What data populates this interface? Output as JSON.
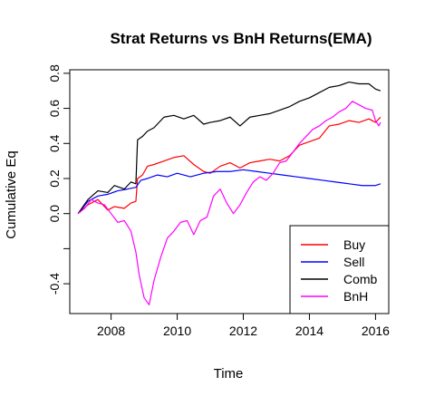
{
  "chart_data": {
    "type": "line",
    "title": "Strat Returns vs BnH Returns(EMA)",
    "xlabel": "Time",
    "ylabel": "Cumulative Eq",
    "xlim": [
      2006.75,
      2016.4
    ],
    "ylim": [
      -0.57,
      0.82
    ],
    "x_ticks": [
      2008,
      2010,
      2012,
      2014,
      2016
    ],
    "x_tick_labels": [
      "2008",
      "2010",
      "2012",
      "2014",
      "2016"
    ],
    "y_ticks": [
      -0.4,
      -0.2,
      0.0,
      0.2,
      0.4,
      0.6,
      0.8
    ],
    "y_tick_labels": [
      "-0.4",
      "",
      "0.0",
      "0.2",
      "0.4",
      "0.6",
      "0.8"
    ],
    "grid": false,
    "legend_position": "bottom-right",
    "series": [
      {
        "name": "Buy",
        "color": "#ff0000",
        "x": [
          2007.0,
          2007.3,
          2007.6,
          2007.9,
          2008.1,
          2008.4,
          2008.6,
          2008.75,
          2008.8,
          2008.95,
          2009.1,
          2009.3,
          2009.6,
          2009.9,
          2010.2,
          2010.5,
          2010.8,
          2011.0,
          2011.3,
          2011.6,
          2011.9,
          2012.2,
          2012.5,
          2012.8,
          2013.1,
          2013.4,
          2013.7,
          2014.0,
          2014.3,
          2014.6,
          2014.9,
          2015.2,
          2015.5,
          2015.8,
          2016.0,
          2016.15
        ],
        "y": [
          0.0,
          0.05,
          0.08,
          0.02,
          0.04,
          0.03,
          0.06,
          0.07,
          0.2,
          0.22,
          0.27,
          0.28,
          0.3,
          0.32,
          0.33,
          0.28,
          0.24,
          0.23,
          0.27,
          0.29,
          0.26,
          0.29,
          0.3,
          0.31,
          0.3,
          0.33,
          0.39,
          0.41,
          0.43,
          0.5,
          0.51,
          0.53,
          0.52,
          0.54,
          0.52,
          0.55
        ]
      },
      {
        "name": "Sell",
        "color": "#0000ff",
        "x": [
          2007.0,
          2007.3,
          2007.6,
          2007.9,
          2008.2,
          2008.5,
          2008.75,
          2008.9,
          2009.1,
          2009.4,
          2009.7,
          2010.0,
          2010.4,
          2010.8,
          2011.2,
          2011.6,
          2012.0,
          2012.4,
          2012.8,
          2013.2,
          2013.6,
          2014.0,
          2014.4,
          2014.8,
          2015.2,
          2015.6,
          2016.0,
          2016.15
        ],
        "y": [
          0.0,
          0.07,
          0.1,
          0.11,
          0.13,
          0.14,
          0.15,
          0.19,
          0.2,
          0.22,
          0.21,
          0.23,
          0.21,
          0.23,
          0.24,
          0.24,
          0.25,
          0.24,
          0.23,
          0.22,
          0.21,
          0.2,
          0.19,
          0.18,
          0.17,
          0.16,
          0.16,
          0.17
        ]
      },
      {
        "name": "Comb",
        "color": "#000000",
        "x": [
          2007.0,
          2007.3,
          2007.6,
          2007.9,
          2008.1,
          2008.4,
          2008.6,
          2008.75,
          2008.8,
          2008.95,
          2009.1,
          2009.3,
          2009.6,
          2009.9,
          2010.2,
          2010.5,
          2010.8,
          2011.0,
          2011.3,
          2011.6,
          2011.9,
          2012.2,
          2012.5,
          2012.8,
          2013.1,
          2013.4,
          2013.7,
          2014.0,
          2014.3,
          2014.6,
          2014.9,
          2015.2,
          2015.5,
          2015.8,
          2016.0,
          2016.15
        ],
        "y": [
          0.0,
          0.08,
          0.13,
          0.12,
          0.16,
          0.14,
          0.18,
          0.17,
          0.42,
          0.44,
          0.47,
          0.49,
          0.55,
          0.56,
          0.54,
          0.56,
          0.51,
          0.52,
          0.53,
          0.55,
          0.5,
          0.55,
          0.56,
          0.57,
          0.59,
          0.61,
          0.64,
          0.66,
          0.69,
          0.72,
          0.73,
          0.75,
          0.74,
          0.74,
          0.71,
          0.7
        ]
      },
      {
        "name": "BnH",
        "color": "#ff00ff",
        "x": [
          2007.0,
          2007.2,
          2007.4,
          2007.6,
          2007.8,
          2008.0,
          2008.2,
          2008.4,
          2008.6,
          2008.75,
          2008.85,
          2009.0,
          2009.15,
          2009.3,
          2009.5,
          2009.7,
          2009.9,
          2010.1,
          2010.3,
          2010.5,
          2010.7,
          2010.9,
          2011.1,
          2011.3,
          2011.5,
          2011.7,
          2011.9,
          2012.1,
          2012.3,
          2012.5,
          2012.7,
          2012.9,
          2013.1,
          2013.3,
          2013.5,
          2013.7,
          2013.9,
          2014.1,
          2014.3,
          2014.5,
          2014.7,
          2014.9,
          2015.1,
          2015.3,
          2015.5,
          2015.7,
          2015.9,
          2016.0,
          2016.1,
          2016.15
        ],
        "y": [
          0.0,
          0.03,
          0.08,
          0.06,
          0.05,
          0.0,
          -0.05,
          -0.04,
          -0.1,
          -0.22,
          -0.35,
          -0.48,
          -0.52,
          -0.38,
          -0.25,
          -0.14,
          -0.1,
          -0.05,
          -0.04,
          -0.12,
          -0.04,
          -0.02,
          0.1,
          0.14,
          0.06,
          0.0,
          0.05,
          0.12,
          0.18,
          0.21,
          0.19,
          0.23,
          0.29,
          0.3,
          0.35,
          0.4,
          0.44,
          0.48,
          0.5,
          0.53,
          0.55,
          0.58,
          0.6,
          0.64,
          0.62,
          0.6,
          0.59,
          0.53,
          0.5,
          0.52
        ]
      }
    ]
  }
}
